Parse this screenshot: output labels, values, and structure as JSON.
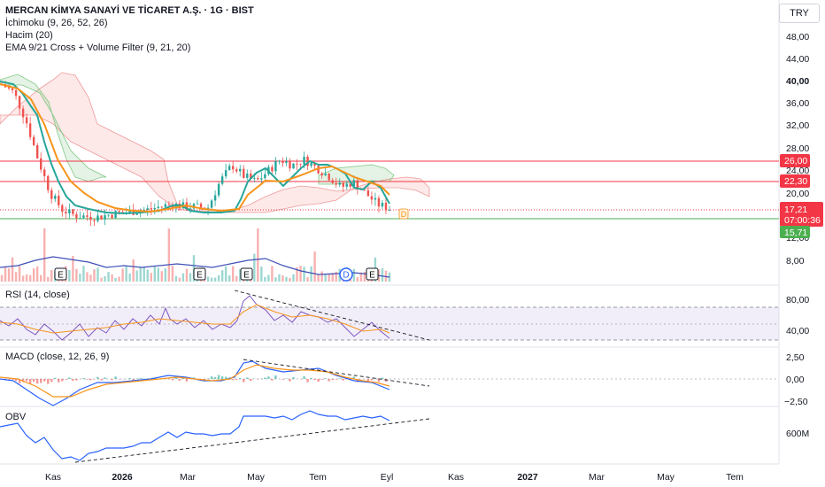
{
  "header": {
    "title": "MERCAN KİMYA SANAYİ VE TİCARET A.Ş. · 1G · BIST",
    "indicators": [
      "İchimoku (9, 26, 52, 26)",
      "Hacim (20)",
      "EMA 9/21 Cross + Volume Filter (9, 21, 20)"
    ],
    "currency": "TRY"
  },
  "panes": {
    "rsi_label": "RSI (14, close)",
    "macd_label": "MACD (close, 12, 26, 9)",
    "obv_label": "OBV"
  },
  "price_axis": {
    "ticks": [
      "48,00",
      "44,00",
      "40,00",
      "36,00",
      "32,00",
      "28,00",
      "24,00",
      "20,00",
      "12,00",
      "8,00"
    ],
    "bold_tick": "40,00",
    "badges": [
      {
        "label": "26,00",
        "color": "#f23645"
      },
      {
        "label": "22,30",
        "color": "#f23645"
      },
      {
        "label": "17,21",
        "sub": "07:00:36",
        "color": "#f23645"
      },
      {
        "label": "15,71",
        "color": "#4caf50"
      }
    ]
  },
  "rsi_axis": [
    "80,00",
    "40,00"
  ],
  "macd_axis": [
    "2,50",
    "0,00",
    "−2,50"
  ],
  "obv_axis": [
    "600M"
  ],
  "time_axis": [
    "Kas",
    "2026",
    "Mar",
    "May",
    "Tem",
    "Eyl",
    "Kas",
    "2027",
    "Mar",
    "May",
    "Tem"
  ],
  "events": [
    "E",
    "E",
    "E",
    "D",
    "E"
  ],
  "dividend_marker": "D",
  "chart_data": {
    "type": "line",
    "price": {
      "levels": {
        "resistance_1": 26.0,
        "resistance_2": 22.3,
        "support": 15.71,
        "last": 17.21
      },
      "close_approx": [
        39.5,
        38,
        33,
        26,
        20,
        17,
        16,
        15.8,
        15.7,
        16.2,
        16.5,
        16.8,
        17.0,
        17.5,
        18,
        17.6,
        17.5,
        17.3,
        22,
        25,
        23,
        22,
        24,
        26,
        25,
        26,
        24.5,
        23,
        21,
        22,
        20,
        18,
        17.2
      ]
    },
    "rsi": {
      "ylim": [
        20,
        90
      ],
      "bands": [
        70,
        30
      ],
      "latest": 40
    },
    "macd": {
      "ylim": [
        -3,
        3
      ],
      "latest": -0.6
    },
    "obv": {
      "tick": "600M"
    }
  },
  "colors": {
    "candle_up": "#26a69a",
    "candle_down": "#ef5350",
    "ema_fast": "#26a69a",
    "ema_slow": "#f7931a",
    "line_blue": "#3f51b5",
    "resistance": "#f23645",
    "support": "#4caf50"
  }
}
